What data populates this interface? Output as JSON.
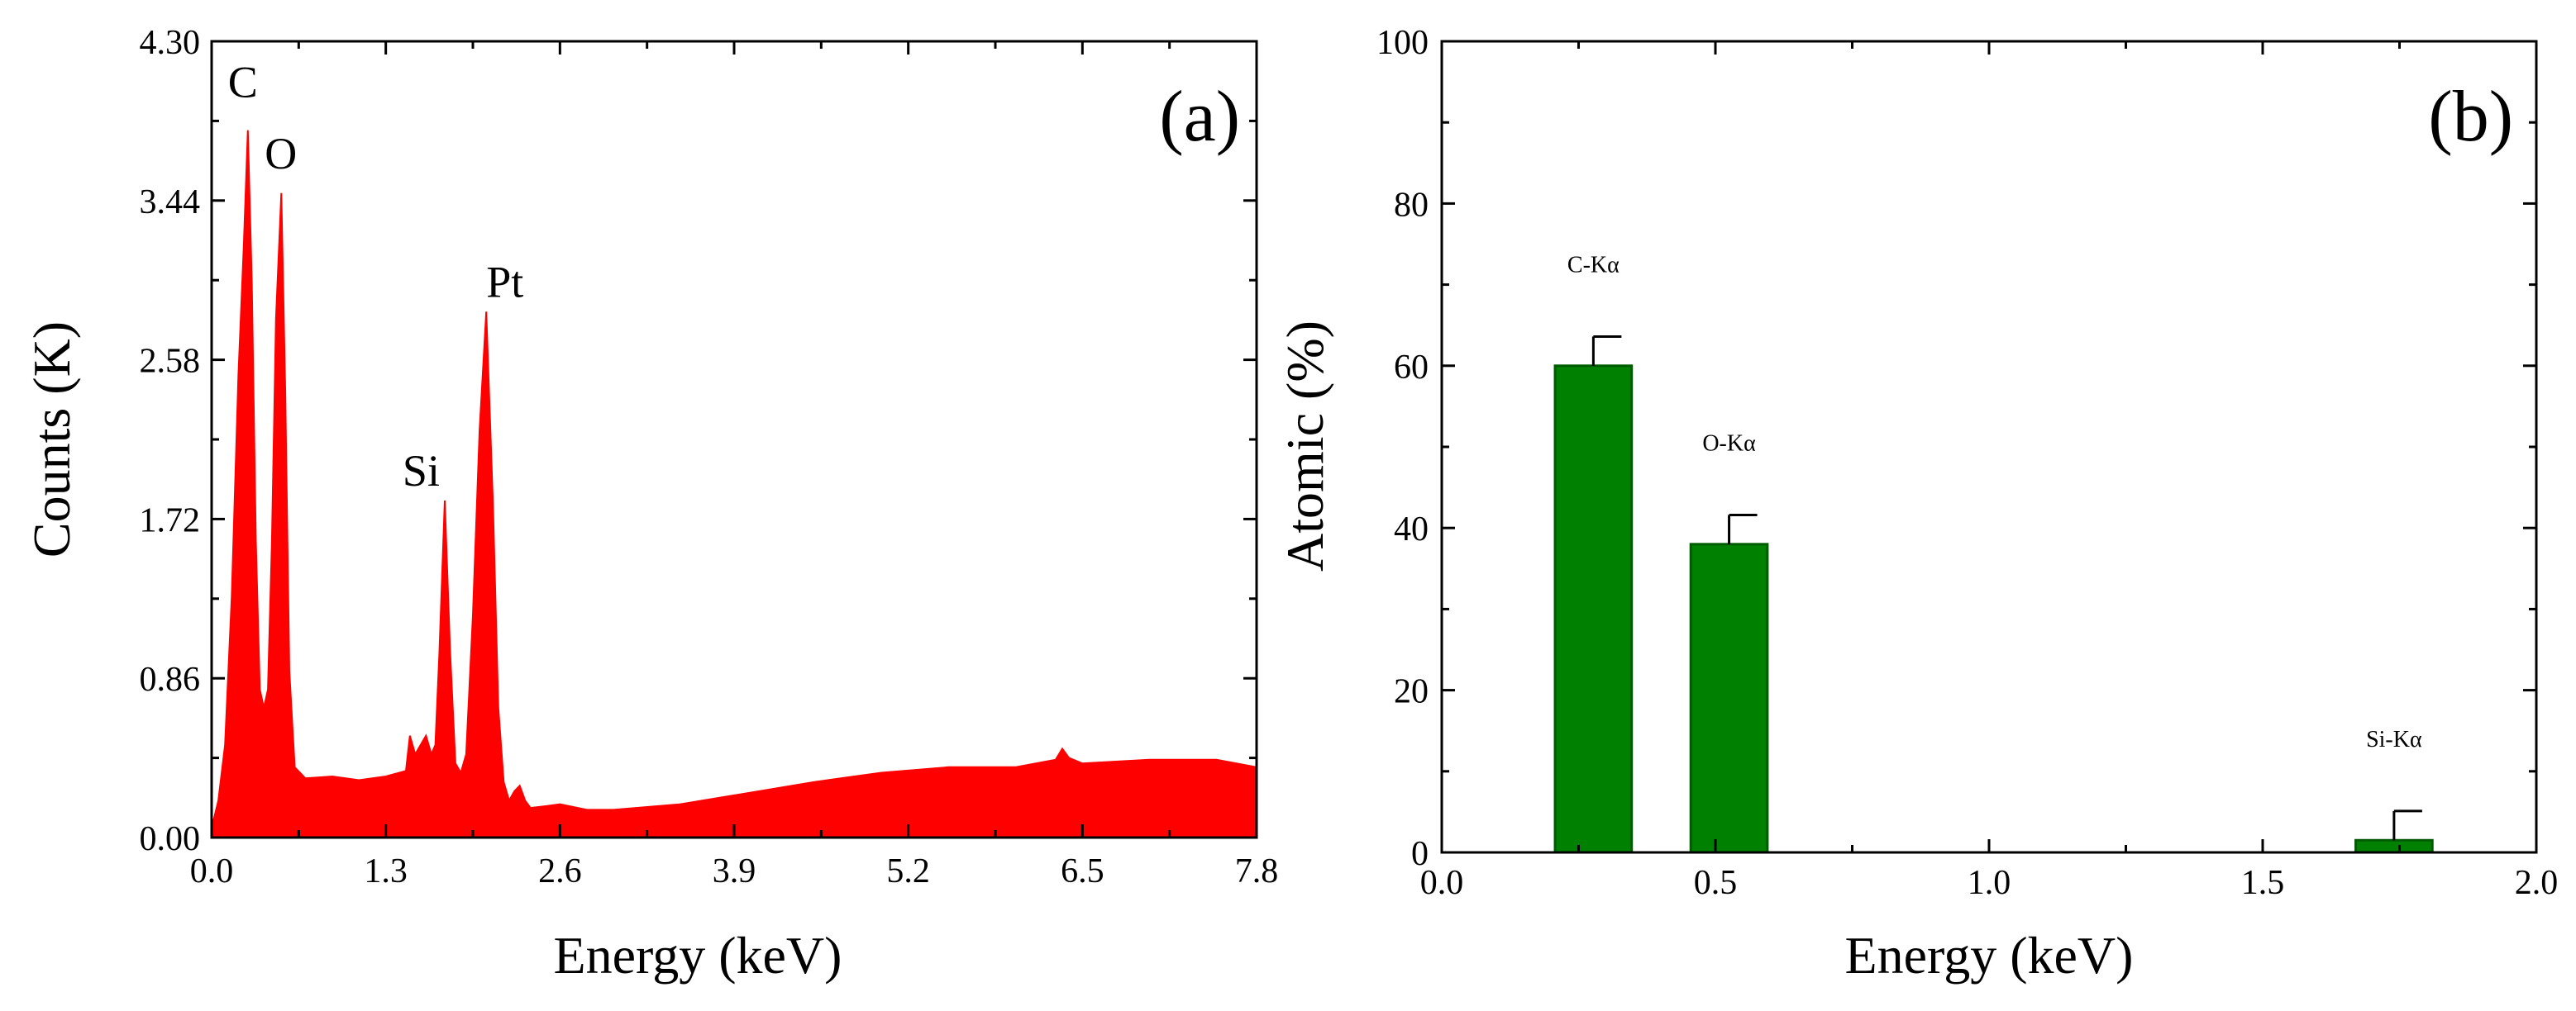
{
  "chart_data": [
    {
      "panel": "(a)",
      "type": "area",
      "title": "",
      "xlabel": "Energy (keV)",
      "ylabel": "Counts  (K)",
      "xlim": [
        0.0,
        7.8
      ],
      "ylim": [
        0.0,
        4.3
      ],
      "xticks": [
        "0.0",
        "1.3",
        "2.6",
        "3.9",
        "5.2",
        "6.5",
        "7.8"
      ],
      "yticks": [
        "0.00",
        "0.86",
        "1.72",
        "2.58",
        "3.44",
        "4.30"
      ],
      "color": "#ff0000",
      "peak_labels": [
        {
          "text": "C",
          "x": 0.27,
          "y": 3.82
        },
        {
          "text": "O",
          "x": 0.52,
          "y": 3.48
        },
        {
          "text": "Si",
          "x": 1.74,
          "y": 1.82
        },
        {
          "text": "Pt",
          "x": 2.05,
          "y": 2.84
        }
      ],
      "x": [
        0.0,
        0.05,
        0.1,
        0.15,
        0.2,
        0.24,
        0.27,
        0.3,
        0.33,
        0.36,
        0.39,
        0.42,
        0.45,
        0.48,
        0.52,
        0.55,
        0.58,
        0.62,
        0.7,
        0.9,
        1.1,
        1.3,
        1.45,
        1.48,
        1.52,
        1.56,
        1.6,
        1.64,
        1.67,
        1.7,
        1.74,
        1.78,
        1.82,
        1.86,
        1.9,
        1.95,
        2.0,
        2.05,
        2.1,
        2.14,
        2.18,
        2.22,
        2.26,
        2.3,
        2.34,
        2.38,
        2.5,
        2.6,
        2.8,
        3.0,
        3.5,
        4.0,
        4.5,
        5.0,
        5.5,
        6.0,
        6.3,
        6.35,
        6.4,
        6.5,
        7.0,
        7.5,
        7.8
      ],
      "y": [
        0.05,
        0.2,
        0.5,
        1.3,
        2.5,
        3.2,
        3.82,
        3.0,
        1.6,
        0.8,
        0.7,
        0.8,
        1.6,
        2.8,
        3.48,
        2.4,
        0.9,
        0.38,
        0.32,
        0.33,
        0.31,
        0.33,
        0.36,
        0.55,
        0.45,
        0.5,
        0.55,
        0.45,
        0.5,
        1.0,
        1.82,
        1.0,
        0.4,
        0.35,
        0.45,
        1.2,
        2.2,
        2.84,
        1.8,
        0.7,
        0.3,
        0.2,
        0.25,
        0.28,
        0.2,
        0.16,
        0.17,
        0.18,
        0.15,
        0.15,
        0.18,
        0.24,
        0.3,
        0.35,
        0.38,
        0.38,
        0.42,
        0.48,
        0.43,
        0.4,
        0.42,
        0.42,
        0.38
      ]
    },
    {
      "panel": "(b)",
      "type": "bar",
      "title": "",
      "xlabel": "Energy (keV)",
      "ylabel": "Atomic  (%)",
      "xlim": [
        0.0,
        2.0
      ],
      "ylim": [
        0,
        100
      ],
      "xticks": [
        "0.0",
        "0.5",
        "1.0",
        "1.5",
        "2.0"
      ],
      "yticks": [
        "0",
        "20",
        "40",
        "60",
        "80",
        "100"
      ],
      "color": "#008000",
      "bar_width": 0.14,
      "bars": [
        {
          "label": "C-Kα",
          "x": 0.277,
          "value": 60,
          "error": 3.6
        },
        {
          "label": "O-Kα",
          "x": 0.525,
          "value": 38,
          "error": 3.6
        },
        {
          "label": "Si-Kα",
          "x": 1.74,
          "value": 1.5,
          "error": 3.6
        }
      ]
    }
  ]
}
